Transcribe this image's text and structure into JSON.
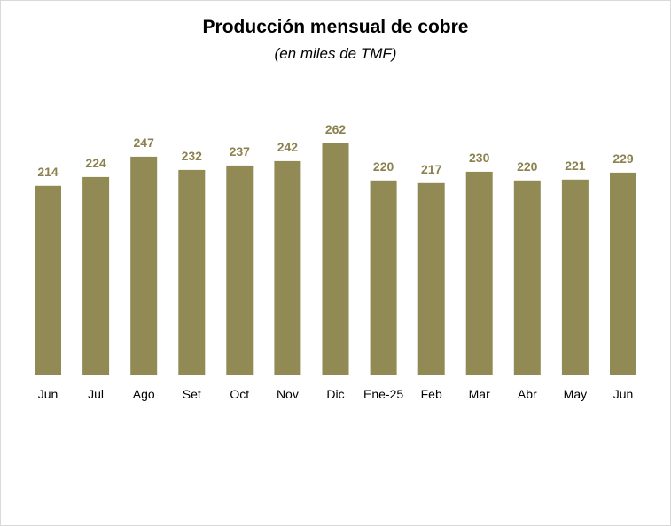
{
  "chart_data": {
    "type": "bar",
    "title": "Producción  mensual de cobre",
    "subtitle": "(en miles de TMF)",
    "categories": [
      "Jun",
      "Jul",
      "Ago",
      "Set",
      "Oct",
      "Nov",
      "Dic",
      "Ene-25",
      "Feb",
      "Mar",
      "Abr",
      "May",
      "Jun"
    ],
    "values": [
      214,
      224,
      247,
      232,
      237,
      242,
      262,
      220,
      217,
      230,
      220,
      221,
      229
    ],
    "data_labels": true,
    "bar_color": "#928A55",
    "label_color": "#8C8250",
    "axis_color": "#BFBFBF",
    "ylim": [
      0,
      262
    ],
    "grid": false,
    "legend": "none"
  }
}
